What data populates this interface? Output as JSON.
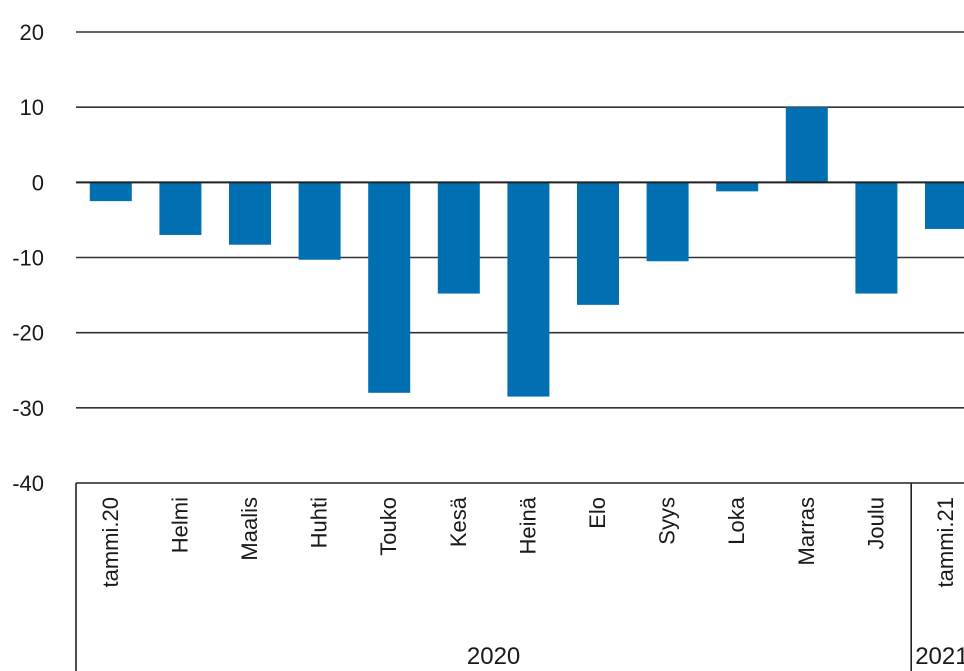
{
  "chart_data": {
    "type": "bar",
    "categories": [
      "tammi.20",
      "Helmi",
      "Maalis",
      "Huhti",
      "Touko",
      "Kesä",
      "Heinä",
      "Elo",
      "Syys",
      "Loka",
      "Marras",
      "Joulu",
      "tammi.21"
    ],
    "values": [
      -2.5,
      -7,
      -8.3,
      -10.3,
      -28,
      -14.8,
      -28.5,
      -16.3,
      -10.5,
      -1.2,
      10,
      -14.8,
      -6.2
    ],
    "yticks": [
      20,
      10,
      0,
      -10,
      -20,
      -30,
      -40
    ],
    "ylim": [
      -40,
      20
    ],
    "groups": [
      {
        "label": "2020",
        "start": 0,
        "end": 11
      },
      {
        "label": "2021",
        "start": 12,
        "end": 12
      }
    ],
    "bar_color": "#0070b3",
    "grid": true,
    "title": "",
    "xlabel": "",
    "ylabel": ""
  }
}
